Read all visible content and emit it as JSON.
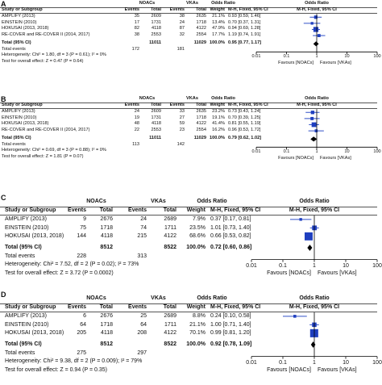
{
  "chart_data": [
    {
      "type": "forest",
      "panel_label": "A",
      "groups": [
        "NOACs",
        "VKAs"
      ],
      "columns": [
        "Study or Subgroup",
        "Events",
        "Total",
        "Events",
        "Total",
        "Weight",
        "M-H, Fixed, 95% CI",
        "M-H, Fixed, 95% CI"
      ],
      "or_header": "Odds Ratio",
      "studies": [
        {
          "name": "AMPLIFY (2013)",
          "e1": "35",
          "t1": "2609",
          "e2": "38",
          "t2": "2635",
          "weight": "21.1%",
          "ci_text": "0.93 [0.59, 1.46]",
          "or": 0.93,
          "lo": 0.59,
          "hi": 1.46,
          "w": 21.1
        },
        {
          "name": "EINSTEIN (2010)",
          "e1": "17",
          "t1": "1731",
          "e2": "24",
          "t2": "1718",
          "weight": "13.4%",
          "ci_text": "0.70 [0.37, 1.31]",
          "or": 0.7,
          "lo": 0.37,
          "hi": 1.31,
          "w": 13.4
        },
        {
          "name": "HOKUSAI (2013, 2018)",
          "e1": "82",
          "t1": "4118",
          "e2": "87",
          "t2": "4122",
          "weight": "47.9%",
          "ci_text": "0.94 [0.69, 1.28]",
          "or": 0.94,
          "lo": 0.69,
          "hi": 1.28,
          "w": 47.9
        },
        {
          "name": "RE-COVER and RE-COVER II (2014, 2017)",
          "e1": "38",
          "t1": "2553",
          "e2": "32",
          "t2": "2554",
          "weight": "17.7%",
          "ci_text": "1.19 [0.74, 1.91]",
          "or": 1.19,
          "lo": 0.74,
          "hi": 1.91,
          "w": 17.7
        }
      ],
      "total_label": "Total (95% CI)",
      "total": {
        "t1": "11011",
        "t2": "11029",
        "weight": "100.0%",
        "ci_text": "0.95 [0.77, 1.17]",
        "or": 0.95,
        "lo": 0.77,
        "hi": 1.17
      },
      "total_events_label": "Total events",
      "total_events": {
        "e1": "172",
        "e2": "181"
      },
      "heterogeneity": "Heterogeneity: Chi² = 1.80, df = 3 (P = 0.61); I² = 0%",
      "overall": "Test for overall effect: Z = 0.47 (P = 0.64)",
      "axis": {
        "scale": "log",
        "ticks": [
          0.01,
          0.1,
          1,
          10,
          100
        ],
        "tick_labels": [
          "0.01",
          "0.1",
          "1",
          "10",
          "100"
        ],
        "favours_left": "Favours [NOACs]",
        "favours_right": "Favours [VKAs]"
      }
    },
    {
      "type": "forest",
      "panel_label": "B",
      "groups": [
        "NOACs",
        "VKAs"
      ],
      "columns": [
        "Study or Subgroup",
        "Events",
        "Total",
        "Events",
        "Total",
        "Weight",
        "M-H, Fixed, 95% CI",
        "M-H, Fixed, 95% CI"
      ],
      "or_header": "Odds Ratio",
      "studies": [
        {
          "name": "AMPLIFY (2013)",
          "e1": "24",
          "t1": "2609",
          "e2": "33",
          "t2": "2635",
          "weight": "23.2%",
          "ci_text": "0.73 [0.43, 1.24]",
          "or": 0.73,
          "lo": 0.43,
          "hi": 1.24,
          "w": 23.2
        },
        {
          "name": "EINSTEIN (2010)",
          "e1": "19",
          "t1": "1731",
          "e2": "27",
          "t2": "1718",
          "weight": "19.1%",
          "ci_text": "0.70 [0.39, 1.25]",
          "or": 0.7,
          "lo": 0.39,
          "hi": 1.25,
          "w": 19.1
        },
        {
          "name": "HOKUSAI (2013, 2018)",
          "e1": "48",
          "t1": "4118",
          "e2": "59",
          "t2": "4122",
          "weight": "41.4%",
          "ci_text": "0.81 [0.55, 1.19]",
          "or": 0.81,
          "lo": 0.55,
          "hi": 1.19,
          "w": 41.4
        },
        {
          "name": "RE-COVER and RE-COVER II (2014, 2017)",
          "e1": "22",
          "t1": "2553",
          "e2": "23",
          "t2": "2554",
          "weight": "16.2%",
          "ci_text": "0.96 [0.53, 1.72]",
          "or": 0.96,
          "lo": 0.53,
          "hi": 1.72,
          "w": 16.2
        }
      ],
      "total_label": "Total (95% CI)",
      "total": {
        "t1": "11011",
        "t2": "11029",
        "weight": "100.0%",
        "ci_text": "0.79 [0.62, 1.02]",
        "or": 0.79,
        "lo": 0.62,
        "hi": 1.02
      },
      "total_events_label": "Total events",
      "total_events": {
        "e1": "113",
        "e2": "142"
      },
      "heterogeneity": "Heterogeneity: Chi² = 0.69, df = 3 (P = 0.88); I² = 0%",
      "overall": "Test for overall effect: Z = 1.81 (P = 0.07)",
      "axis": {
        "scale": "log",
        "ticks": [
          0.01,
          0.1,
          1,
          10,
          100
        ],
        "tick_labels": [
          "0.01",
          "0.1",
          "1",
          "10",
          "100"
        ],
        "favours_left": "Favours [NOACs]",
        "favours_right": "Favours [VKAs]"
      }
    },
    {
      "type": "forest",
      "panel_label": "C",
      "groups": [
        "NOACs",
        "VKAs"
      ],
      "columns": [
        "Study or Subgroup",
        "Events",
        "Total",
        "Events",
        "Total",
        "Weight",
        "M-H, Fixed, 95% CI",
        "M-H, Fixed, 95% CI"
      ],
      "or_header": "Odds Ratio",
      "studies": [
        {
          "name": "AMPLIFY (2013)",
          "e1": "9",
          "t1": "2676",
          "e2": "24",
          "t2": "2689",
          "weight": "7.9%",
          "ci_text": "0.37 [0.17, 0.81]",
          "or": 0.37,
          "lo": 0.17,
          "hi": 0.81,
          "w": 7.9
        },
        {
          "name": "EINSTEIN (2010)",
          "e1": "75",
          "t1": "1718",
          "e2": "74",
          "t2": "1711",
          "weight": "23.5%",
          "ci_text": "1.01 [0.73, 1.40]",
          "or": 1.01,
          "lo": 0.73,
          "hi": 1.4,
          "w": 23.5
        },
        {
          "name": "HOKUSAI (2013, 2018)",
          "e1": "144",
          "t1": "4118",
          "e2": "215",
          "t2": "4122",
          "weight": "68.6%",
          "ci_text": "0.66 [0.53, 0.82]",
          "or": 0.66,
          "lo": 0.53,
          "hi": 0.82,
          "w": 68.6
        }
      ],
      "total_label": "Total (95% CI)",
      "total": {
        "t1": "8512",
        "t2": "8522",
        "weight": "100.0%",
        "ci_text": "0.72 [0.60, 0.86]",
        "or": 0.72,
        "lo": 0.6,
        "hi": 0.86
      },
      "total_events_label": "Total events",
      "total_events": {
        "e1": "228",
        "e2": "313"
      },
      "heterogeneity": "Heterogeneity: Chi² = 7.52, df = 2 (P = 0.02); I² = 73%",
      "overall": "Test for overall effect: Z = 3.72 (P = 0.0002)",
      "axis": {
        "scale": "log",
        "ticks": [
          0.01,
          0.1,
          1,
          10,
          100
        ],
        "tick_labels": [
          "0.01",
          "0.1",
          "1",
          "10",
          "100"
        ],
        "favours_left": "Favours [NOACs]",
        "favours_right": "Favours [VKAs]"
      }
    },
    {
      "type": "forest",
      "panel_label": "D",
      "groups": [
        "NOACs",
        "VKAs"
      ],
      "columns": [
        "Study or Subgroup",
        "Events",
        "Total",
        "Events",
        "Total",
        "Weight",
        "M-H, Fixed, 95% CI",
        "M-H, Fixed, 95% CI"
      ],
      "or_header": "Odds Ratio",
      "studies": [
        {
          "name": "AMPLIFY (2013)",
          "e1": "6",
          "t1": "2676",
          "e2": "25",
          "t2": "2689",
          "weight": "8.8%",
          "ci_text": "0.24 [0.10, 0.58]",
          "or": 0.24,
          "lo": 0.1,
          "hi": 0.58,
          "w": 8.8
        },
        {
          "name": "EINSTEIN (2010)",
          "e1": "64",
          "t1": "1718",
          "e2": "64",
          "t2": "1711",
          "weight": "21.1%",
          "ci_text": "1.00 [0.71, 1.40]",
          "or": 1.0,
          "lo": 0.71,
          "hi": 1.4,
          "w": 21.1
        },
        {
          "name": "HOKUSAI (2013, 2018)",
          "e1": "205",
          "t1": "4118",
          "e2": "208",
          "t2": "4122",
          "weight": "70.1%",
          "ci_text": "0.99 [0.81, 1.20]",
          "or": 0.99,
          "lo": 0.81,
          "hi": 1.2,
          "w": 70.1
        }
      ],
      "total_label": "Total (95% CI)",
      "total": {
        "t1": "8512",
        "t2": "8522",
        "weight": "100.0%",
        "ci_text": "0.92 [0.78, 1.09]",
        "or": 0.92,
        "lo": 0.78,
        "hi": 1.09
      },
      "total_events_label": "Total events",
      "total_events": {
        "e1": "275",
        "e2": "297"
      },
      "heterogeneity": "Heterogeneity: Chi² = 9.38, df = 2 (P = 0.009); I² = 79%",
      "overall": "Test for overall effect: Z = 0.94 (P = 0.35)",
      "axis": {
        "scale": "log",
        "ticks": [
          0.01,
          0.1,
          1,
          10,
          100
        ],
        "tick_labels": [
          "0.01",
          "0.1",
          "1",
          "10",
          "100"
        ],
        "favours_left": "Favours [NOACs]",
        "favours_right": "Favours [VKAs]"
      }
    }
  ],
  "colors": {
    "marker": "#1f3fbf",
    "ci_line": "#3050c8",
    "diamond": "#000000",
    "text": "#111111"
  }
}
